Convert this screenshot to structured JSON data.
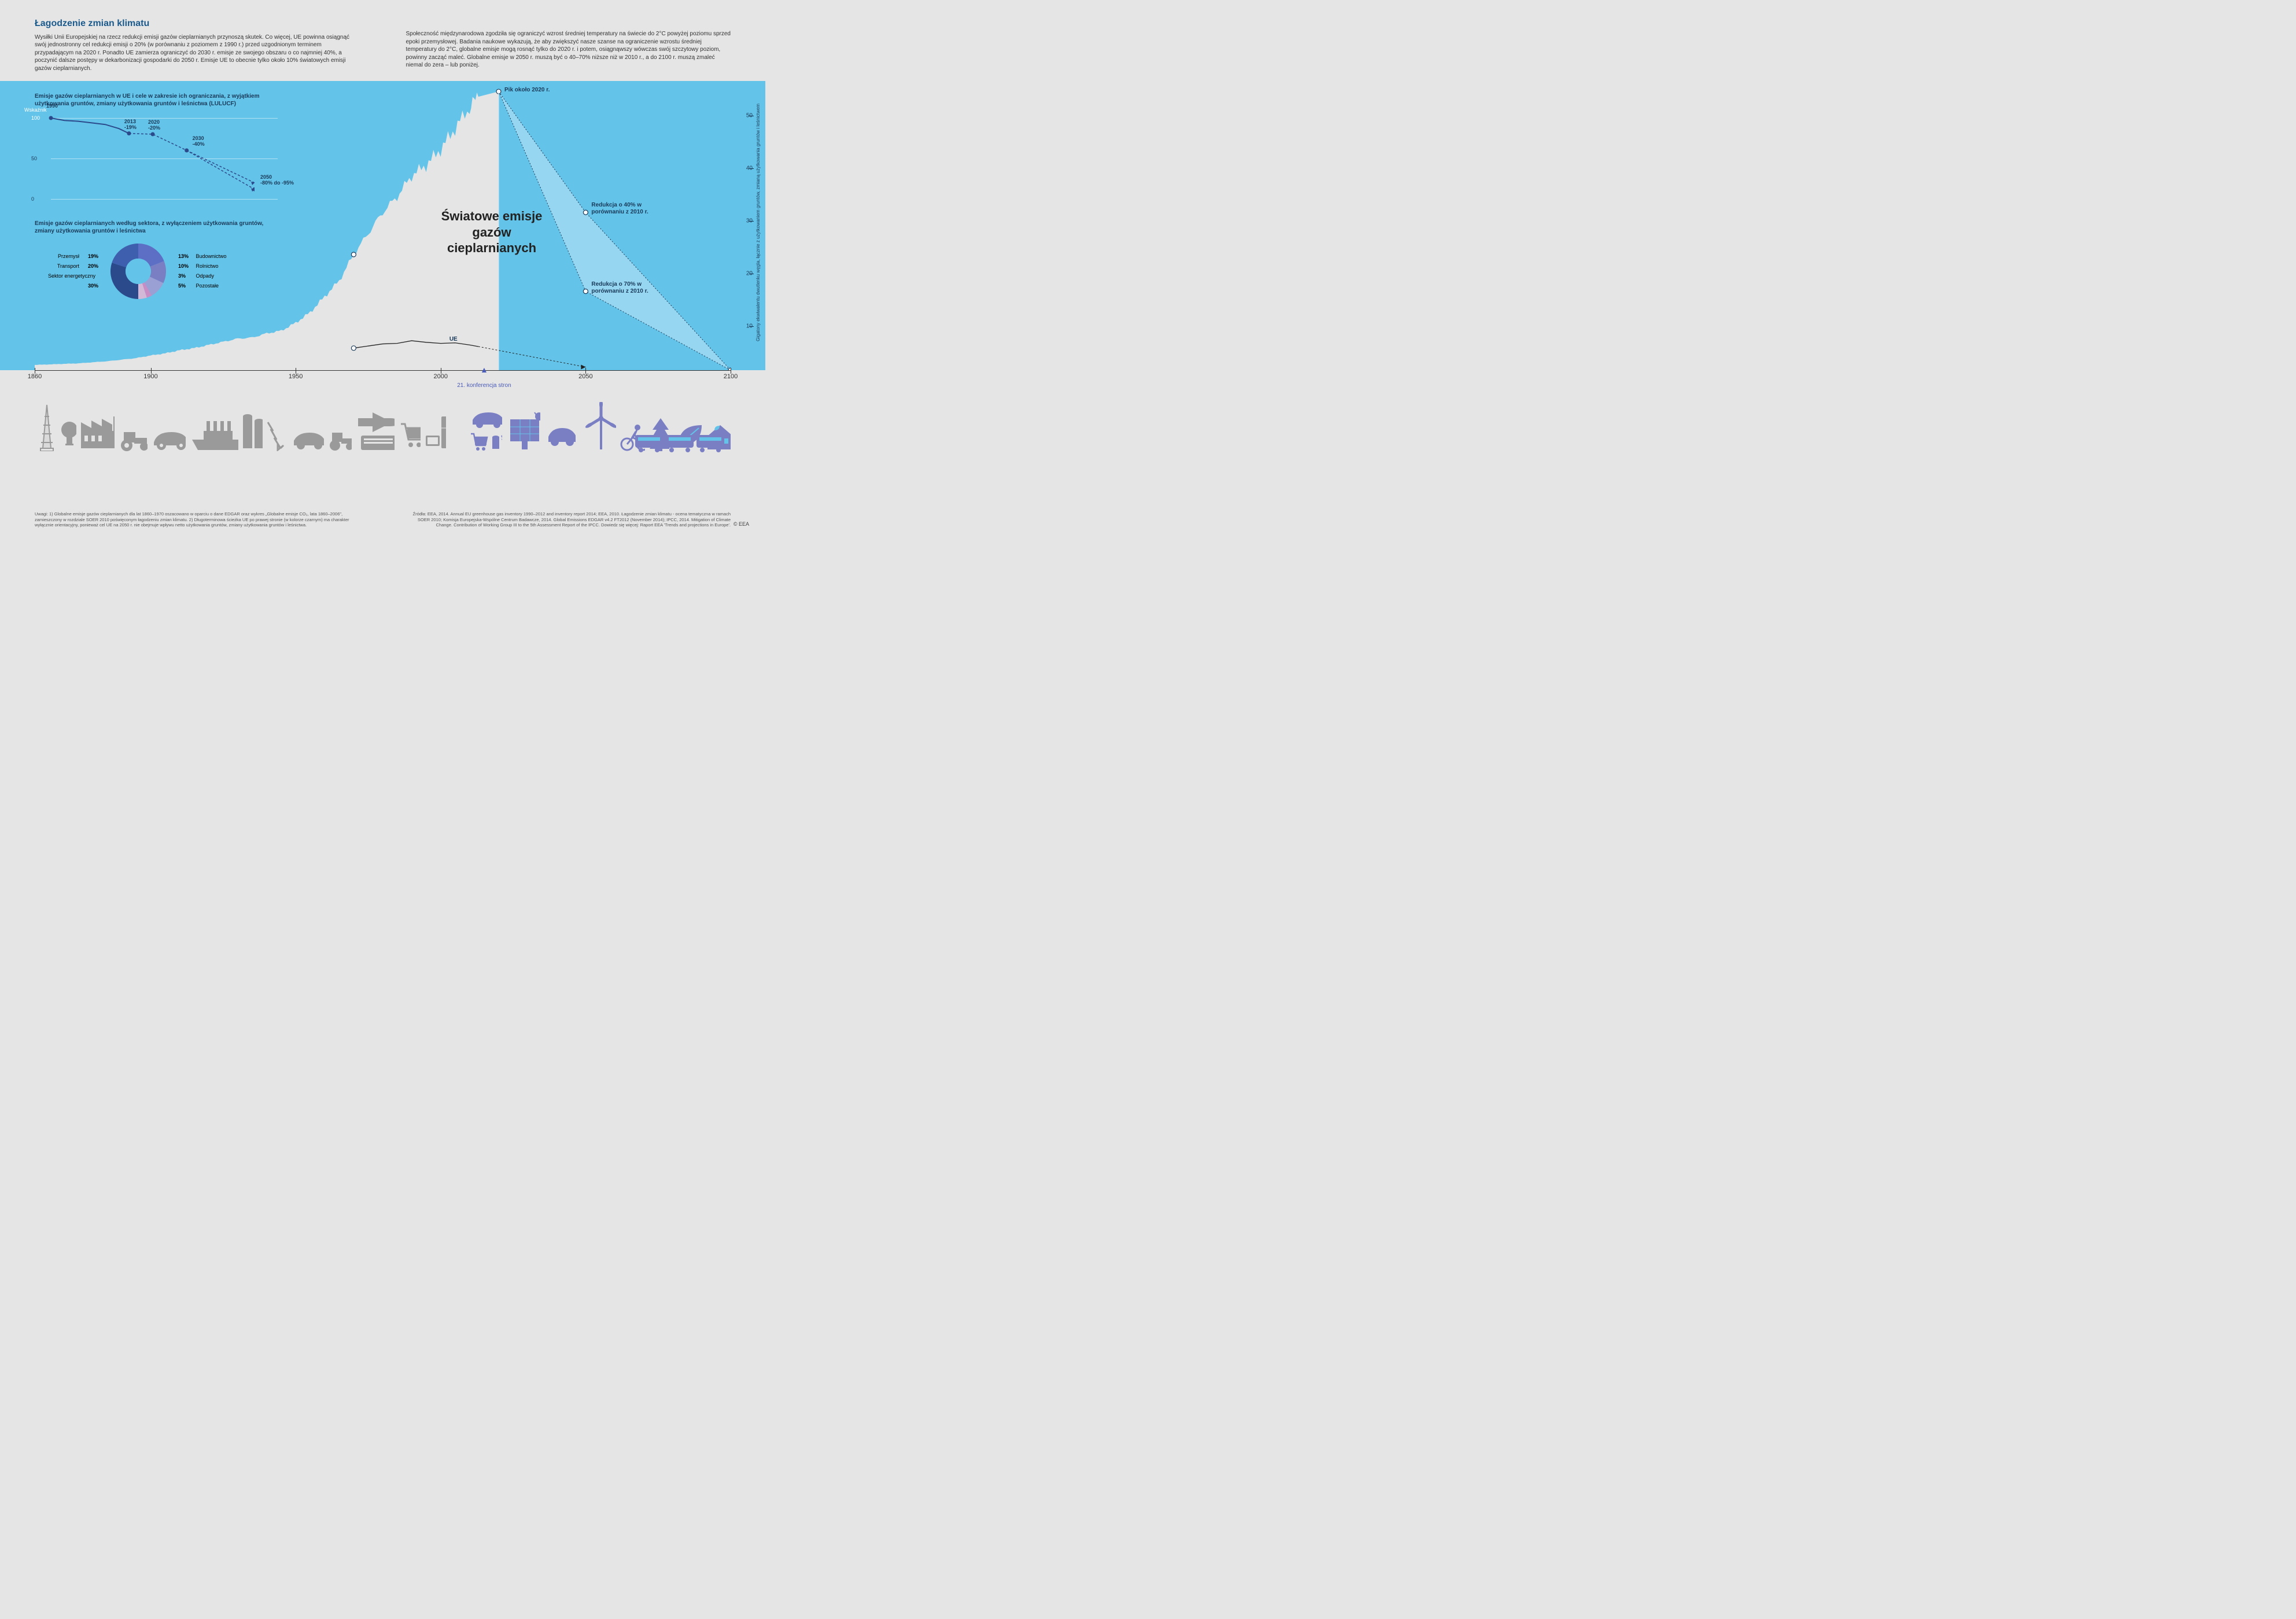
{
  "title": "Łagodzenie zmian klimatu",
  "intro_left": "Wysiłki Unii Europejskiej na rzecz redukcji emisji gazów cieplarnianych przynoszą skutek. Co więcej, UE powinna osiągnąć swój jednostronny cel redukcji emisji o 20% (w porównaniu z poziomem z 1990 r.) przed uzgodnionym terminem przypadającym na 2020 r. Ponadto UE zamierza ograniczyć do 2030 r. emisje ze swojego obszaru o co najmniej 40%, a poczynić dalsze postępy w dekarbonizacji gospodarki do 2050 r. Emisje UE to obecnie tylko około 10% światowych emisji gazów cieplarnianych.",
  "intro_right": "Społeczność międzynarodowa zgodziła się ograniczyć wzrost średniej temperatury na świecie do 2°C powyżej poziomu sprzed epoki przemysłowej. Badania naukowe wykazują, że aby zwiększyć nasze szanse na ograniczenie wzrostu średniej temperatury do 2°C, globalne emisje mogą rosnąć tylko do 2020 r. i potem, osiągnąwszy wówczas swój szczytowy poziom, powinny zacząć maleć. Globalne emisje w 2050 r. muszą być o 40–70% niższe niż w 2010 r., a do 2100 r. muszą zmaleć niemal do zera – lub poniżej.",
  "sub_chart": {
    "title": "Emisje gazów cieplarnianych w UE i cele w zakresie ich ograniczania, z wyjątkiem użytkowania gruntów, zmiany użytkowania gruntów i leśnictwa (LULUCF)",
    "index_label": "Wskaźnik",
    "y_ticks": [
      0,
      50,
      100
    ],
    "points": [
      {
        "year": "1990",
        "val": 100,
        "label": "1990",
        "sub": ""
      },
      {
        "year": "2013",
        "val": 81,
        "label": "2013",
        "sub": "-19%"
      },
      {
        "year": "2020",
        "val": 80,
        "label": "2020",
        "sub": "-20%"
      },
      {
        "year": "2030",
        "val": 60,
        "label": "2030",
        "sub": "-40%"
      },
      {
        "year": "2050",
        "val": 12,
        "label": "2050",
        "sub": "-80% do -95%"
      }
    ],
    "line_color": "#2b4a8c",
    "dash_color": "#2b4a8c"
  },
  "donut": {
    "title": "Emisje gazów cieplarnianych według sektora, z wyłączeniem użytkowania gruntów, zmiany użytkowania gruntów i leśnictwa",
    "segments": [
      {
        "label": "Sektor energetyczny",
        "pct": 30,
        "color": "#2b4a8c",
        "side": "left"
      },
      {
        "label": "Transport",
        "pct": 20,
        "color": "#3e5fad",
        "side": "left"
      },
      {
        "label": "Przemysł",
        "pct": 19,
        "color": "#5c6fc4",
        "side": "left"
      },
      {
        "label": "Budownictwo",
        "pct": 13,
        "color": "#7a7fc4",
        "side": "right"
      },
      {
        "label": "Rolnictwo",
        "pct": 10,
        "color": "#9a9fd4",
        "side": "right"
      },
      {
        "label": "Odpady",
        "pct": 3,
        "color": "#c88dc4",
        "side": "right"
      },
      {
        "label": "Pozostałe",
        "pct": 5,
        "color": "#d4b8d8",
        "side": "right"
      }
    ],
    "inner_color": "#64c3e8"
  },
  "main_chart": {
    "label": "Światowe emisje gazów cieplarnianych",
    "xlim": [
      1860,
      2100
    ],
    "ylim": [
      0,
      55
    ],
    "y_ticks": [
      10,
      20,
      30,
      40,
      50
    ],
    "y_axis_label": "Gigatony ekwiwalentu dwutlenku węgla, łącznie z użytkowaniem gruntów, zmianą użytkowania gruntów i leśnictwem",
    "area_color": "#e5e5e5",
    "world_series": [
      [
        1860,
        1.0
      ],
      [
        1865,
        1.1
      ],
      [
        1870,
        1.2
      ],
      [
        1875,
        1.3
      ],
      [
        1880,
        1.5
      ],
      [
        1885,
        1.7
      ],
      [
        1890,
        2.0
      ],
      [
        1895,
        2.3
      ],
      [
        1900,
        2.8
      ],
      [
        1905,
        3.2
      ],
      [
        1910,
        3.8
      ],
      [
        1915,
        4.2
      ],
      [
        1920,
        4.8
      ],
      [
        1925,
        5.4
      ],
      [
        1930,
        6.0
      ],
      [
        1935,
        6.2
      ],
      [
        1940,
        7.0
      ],
      [
        1945,
        7.5
      ],
      [
        1950,
        9.0
      ],
      [
        1955,
        11.0
      ],
      [
        1960,
        14.0
      ],
      [
        1965,
        17.0
      ],
      [
        1970,
        22.0
      ],
      [
        1975,
        26.0
      ],
      [
        1980,
        30.0
      ],
      [
        1985,
        33.0
      ],
      [
        1990,
        37.0
      ],
      [
        1995,
        39.0
      ],
      [
        2000,
        42.0
      ],
      [
        2005,
        46.0
      ],
      [
        2010,
        50.0
      ],
      [
        2013,
        52.0
      ]
    ],
    "eu_series": [
      [
        1970,
        4.2
      ],
      [
        1975,
        4.6
      ],
      [
        1980,
        5.0
      ],
      [
        1985,
        5.1
      ],
      [
        1990,
        5.6
      ],
      [
        1995,
        5.3
      ],
      [
        2000,
        5.1
      ],
      [
        2005,
        5.2
      ],
      [
        2010,
        4.8
      ],
      [
        2013,
        4.5
      ]
    ],
    "eu_proj": [
      [
        2013,
        4.5
      ],
      [
        2050,
        0.6
      ]
    ],
    "eu_label": "UE",
    "peak_label": "Pik około 2020 r.",
    "peak_year": 2020,
    "peak_val": 53,
    "scenario_40": {
      "label": "Redukcja o 40% w porównaniu z 2010 r.",
      "year": 2050,
      "val": 30
    },
    "scenario_70": {
      "label": "Redukcja o 70% w porównaniu z 2010 r.",
      "year": 2050,
      "val": 15
    },
    "end_point": {
      "year": 2100,
      "val": 0
    },
    "historic_marker": {
      "year": 1970,
      "val": 22
    }
  },
  "x_axis": {
    "ticks": [
      1860,
      1900,
      1950,
      2000,
      2050,
      2100
    ],
    "conf_year": 2015,
    "conf_label": "21. konferencja stron"
  },
  "footer_left": "Uwagi: 1) Globalne emisje gazów cieplarnianych dla lat 1860–1970 oszacowano w oparciu o dane EDGAR oraz wykres „Globalne emisje CO₂, lata 1860–2006\", zamieszczony w rozdziale SOER 2010 poświęconym łagodzeniu zmian klimatu. 2) Długoterminowa ścieżka UE po prawej stronie (w kolorze czarnym) ma charakter wyłącznie orientacyjny, ponieważ cel UE na 2050 r. nie obejmuje wpływu netto użytkowania gruntów, zmiany użytkowania gruntów i leśnictwa.",
  "footer_right": "Źródła: EEA, 2014. Annual EU greenhouse gas inventory 1990–2012 and inventory report 2014; EEA, 2010. Łagodzenie zmian klimatu - ocena tematyczna w ramach SOER 2010; Komisja Europejska-Wspólne Centrum Badawcze, 2014. Global Emissions EDGAR v4.2 FT2012 (November 2014); IPCC, 2014. Mitigation of Climate Change. Contribution of Working Group III to the 5th Assessment Report of the IPCC. Dowiedz się więcej: Raport EEA 'Trends and projections in Europe'.",
  "eea": "© EEA",
  "colors": {
    "sky": "#64c3e8",
    "bg": "#e5e5e5",
    "title": "#1a5a8c",
    "icon_past": "#9a9a9a",
    "icon_future": "#7a7fc4",
    "conf": "#4a5bb8"
  }
}
